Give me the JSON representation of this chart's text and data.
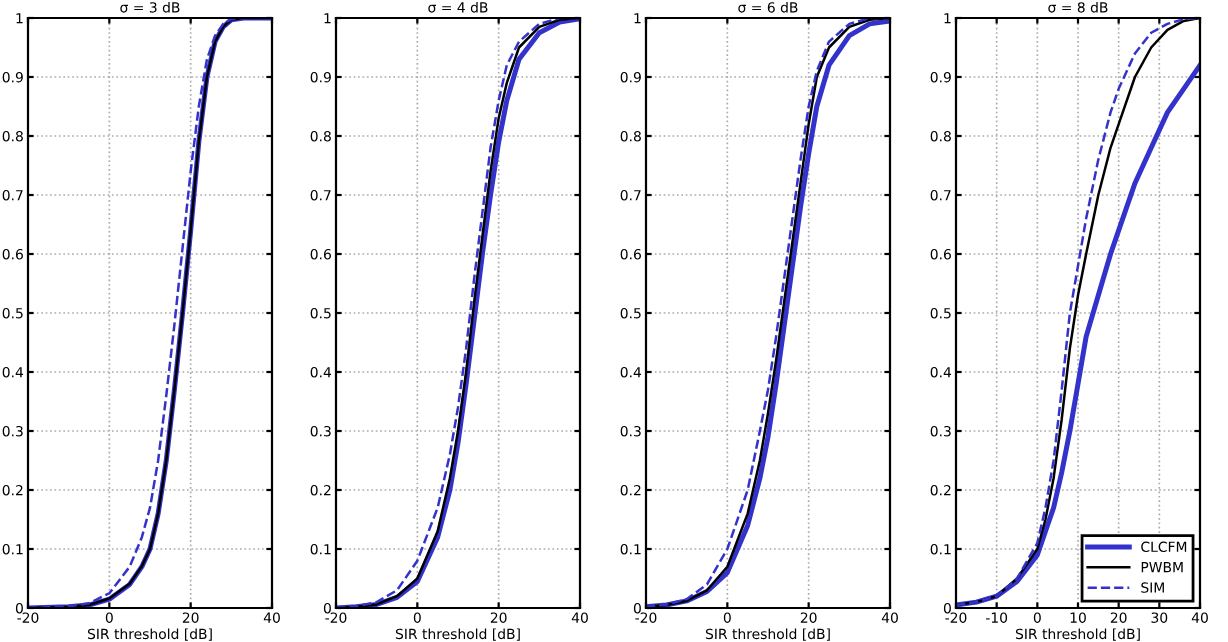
{
  "chart_data": [
    {
      "type": "line",
      "title": "σ = 3 dB",
      "xlabel": "SIR threshold [dB]",
      "xlim": [
        -20,
        40
      ],
      "xticks": [
        -20,
        0,
        20,
        40
      ],
      "ylim": [
        0,
        1
      ],
      "yticks": [
        0,
        0.1,
        0.2,
        0.3,
        0.4,
        0.5,
        0.6,
        0.7,
        0.8,
        0.9,
        1
      ],
      "grid": true,
      "legend": false,
      "x": [
        -20,
        -10,
        -5,
        0,
        5,
        8,
        10,
        12,
        14,
        16,
        18,
        20,
        22,
        24,
        26,
        28,
        30,
        33,
        40
      ],
      "series": [
        {
          "color": "#3333cc",
          "line_style": "solid",
          "values": [
            0,
            0.002,
            0.005,
            0.015,
            0.04,
            0.07,
            0.1,
            0.16,
            0.25,
            0.37,
            0.5,
            0.64,
            0.79,
            0.9,
            0.96,
            0.985,
            0.997,
            1,
            1
          ]
        },
        {
          "color": "#000000",
          "line_style": "solid",
          "values": [
            0,
            0.002,
            0.005,
            0.016,
            0.041,
            0.071,
            0.1,
            0.16,
            0.25,
            0.37,
            0.5,
            0.64,
            0.79,
            0.9,
            0.96,
            0.985,
            0.997,
            1,
            1
          ]
        },
        {
          "color": "#3333cc",
          "line_style": "dashed",
          "values": [
            0,
            0.003,
            0.008,
            0.025,
            0.07,
            0.12,
            0.17,
            0.25,
            0.36,
            0.48,
            0.61,
            0.74,
            0.85,
            0.93,
            0.97,
            0.99,
            0.998,
            1,
            1
          ]
        }
      ]
    },
    {
      "type": "line",
      "title": "σ = 4 dB",
      "xlabel": "SIR threshold [dB]",
      "xlim": [
        -20,
        40
      ],
      "xticks": [
        -20,
        0,
        20,
        40
      ],
      "ylim": [
        0,
        1
      ],
      "yticks": [
        0,
        0.1,
        0.2,
        0.3,
        0.4,
        0.5,
        0.6,
        0.7,
        0.8,
        0.9,
        1
      ],
      "grid": true,
      "legend": false,
      "x": [
        -20,
        -15,
        -10,
        -5,
        0,
        5,
        8,
        10,
        12,
        14,
        16,
        18,
        20,
        22,
        25,
        30,
        35,
        40
      ],
      "series": [
        {
          "color": "#3333cc",
          "line_style": "solid",
          "values": [
            0,
            0.002,
            0.006,
            0.018,
            0.045,
            0.12,
            0.2,
            0.28,
            0.38,
            0.49,
            0.6,
            0.7,
            0.79,
            0.86,
            0.93,
            0.975,
            0.993,
            0.999
          ]
        },
        {
          "color": "#000000",
          "line_style": "solid",
          "values": [
            0,
            0.002,
            0.006,
            0.02,
            0.05,
            0.13,
            0.22,
            0.3,
            0.4,
            0.52,
            0.63,
            0.74,
            0.83,
            0.89,
            0.95,
            0.985,
            0.997,
            1
          ]
        },
        {
          "color": "#3333cc",
          "line_style": "dashed",
          "values": [
            0,
            0.003,
            0.01,
            0.03,
            0.08,
            0.17,
            0.26,
            0.34,
            0.44,
            0.56,
            0.67,
            0.78,
            0.86,
            0.92,
            0.96,
            0.99,
            1,
            1
          ]
        }
      ]
    },
    {
      "type": "line",
      "title": "σ = 6 dB",
      "xlabel": "SIR threshold [dB]",
      "xlim": [
        -20,
        40
      ],
      "xticks": [
        -20,
        0,
        20,
        40
      ],
      "ylim": [
        0,
        1
      ],
      "yticks": [
        0,
        0.1,
        0.2,
        0.3,
        0.4,
        0.5,
        0.6,
        0.7,
        0.8,
        0.9,
        1
      ],
      "grid": true,
      "legend": false,
      "x": [
        -20,
        -15,
        -10,
        -5,
        0,
        5,
        8,
        10,
        12,
        14,
        16,
        18,
        20,
        22,
        25,
        30,
        35,
        40
      ],
      "series": [
        {
          "color": "#3333cc",
          "line_style": "solid",
          "values": [
            0.002,
            0.005,
            0.012,
            0.028,
            0.06,
            0.14,
            0.22,
            0.29,
            0.38,
            0.48,
            0.58,
            0.68,
            0.77,
            0.85,
            0.92,
            0.97,
            0.99,
            0.995
          ]
        },
        {
          "color": "#000000",
          "line_style": "solid",
          "values": [
            0.002,
            0.005,
            0.012,
            0.03,
            0.07,
            0.16,
            0.25,
            0.33,
            0.42,
            0.52,
            0.62,
            0.72,
            0.82,
            0.9,
            0.95,
            0.985,
            0.997,
            1
          ]
        },
        {
          "color": "#3333cc",
          "line_style": "dashed",
          "values": [
            0.002,
            0.006,
            0.015,
            0.04,
            0.1,
            0.2,
            0.3,
            0.37,
            0.46,
            0.56,
            0.66,
            0.76,
            0.85,
            0.91,
            0.96,
            0.99,
            1,
            1
          ]
        }
      ]
    },
    {
      "type": "line",
      "title": "σ = 8 dB",
      "xlabel": "SIR threshold [dB]",
      "xlim": [
        -20,
        40
      ],
      "xticks": [
        -20,
        -10,
        0,
        10,
        20,
        30,
        40
      ],
      "ylim": [
        0,
        1
      ],
      "yticks": [
        0,
        0.1,
        0.2,
        0.3,
        0.4,
        0.5,
        0.6,
        0.7,
        0.8,
        0.9,
        1
      ],
      "grid": true,
      "legend": "bottom right",
      "x": [
        -20,
        -15,
        -10,
        -5,
        0,
        2,
        4,
        6,
        8,
        10,
        12,
        15,
        18,
        20,
        24,
        28,
        32,
        36,
        40
      ],
      "series": [
        {
          "name": "CLCFM",
          "color": "#3333cc",
          "line_style": "solid",
          "values": [
            0.005,
            0.01,
            0.02,
            0.045,
            0.09,
            0.13,
            0.17,
            0.23,
            0.3,
            0.38,
            0.46,
            0.53,
            0.6,
            0.64,
            0.72,
            0.78,
            0.84,
            0.88,
            0.92
          ]
        },
        {
          "name": "PWBM",
          "color": "#000000",
          "line_style": "solid",
          "values": [
            0.005,
            0.01,
            0.02,
            0.05,
            0.1,
            0.15,
            0.22,
            0.32,
            0.44,
            0.53,
            0.6,
            0.7,
            0.78,
            0.82,
            0.9,
            0.95,
            0.98,
            0.995,
            1
          ]
        },
        {
          "name": "SIM",
          "color": "#3333cc",
          "line_style": "dashed",
          "values": [
            0.005,
            0.01,
            0.02,
            0.05,
            0.11,
            0.17,
            0.25,
            0.37,
            0.5,
            0.58,
            0.66,
            0.76,
            0.84,
            0.88,
            0.94,
            0.975,
            0.99,
            0.998,
            1
          ]
        }
      ]
    }
  ]
}
